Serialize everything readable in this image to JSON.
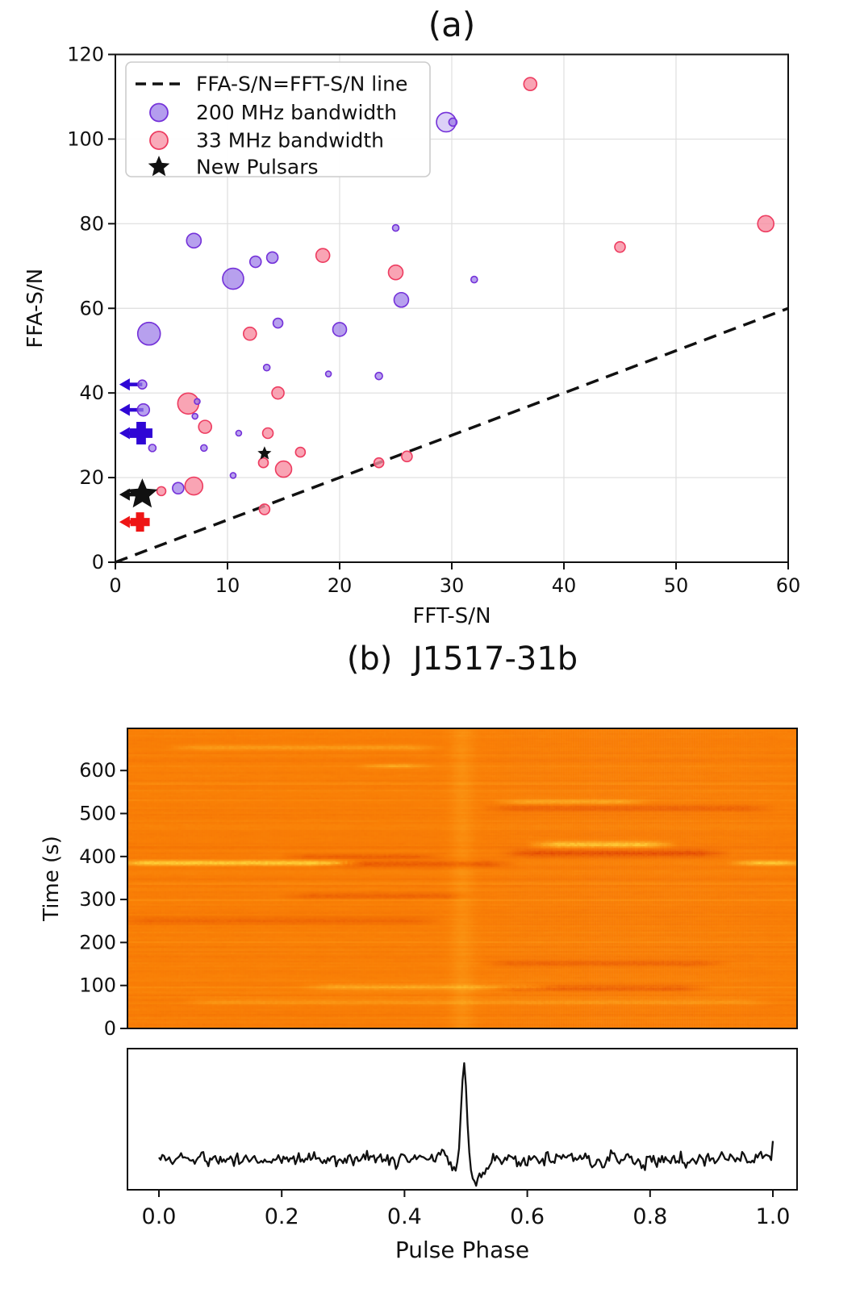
{
  "figure": {
    "panel_a_title": "(a)",
    "panel_b_title": "(b)  J1517-31b"
  },
  "colors": {
    "purple_fill": "#9b7ce8",
    "purple_edge": "#7431d9",
    "red_fill": "#f78da1",
    "red_edge": "#ed3c60",
    "blue_solid": "#2f06d5",
    "red_solid": "#ee1515",
    "black": "#111111",
    "grid": "#dedede",
    "heat_base": "#f97f06",
    "heat_bright": "#ffd43b",
    "heat_dark": "#dd3d00"
  },
  "chart_data": [
    {
      "id": "ffa-vs-fft-scatter",
      "type": "scatter",
      "title": "(a)",
      "xlabel": "FFT-S/N",
      "ylabel": "FFA-S/N",
      "xlim": [
        0,
        60
      ],
      "ylim": [
        0,
        120
      ],
      "xticks": [
        0,
        10,
        20,
        30,
        40,
        50,
        60
      ],
      "yticks": [
        0,
        20,
        40,
        60,
        80,
        100,
        120
      ],
      "grid": true,
      "identity_line": {
        "from": [
          0,
          0
        ],
        "to": [
          60,
          60
        ],
        "style": "dashed",
        "color": "#111111"
      },
      "legend": {
        "position": "upper-left",
        "entries": [
          {
            "label": "FFA-S/N=FFT-S/N line",
            "marker": "dashed-line",
            "color": "#111111"
          },
          {
            "label": "200 MHz bandwidth",
            "marker": "circle",
            "fill": "#9b7ce8",
            "edge": "#7431d9"
          },
          {
            "label": "33 MHz bandwidth",
            "marker": "circle",
            "fill": "#f78da1",
            "edge": "#ed3c60"
          },
          {
            "label": "New Pulsars",
            "marker": "star",
            "color": "#111111"
          }
        ]
      },
      "series": [
        {
          "name": "200 MHz bandwidth",
          "marker": "circle",
          "fill": "#9b7ce8",
          "edge": "#7431d9",
          "opacity": 0.72,
          "z": 3,
          "arrow_color": "#2f06d5",
          "points": [
            [
              3,
              54,
              14
            ],
            [
              7,
              76,
              9
            ],
            [
              10.5,
              67,
              13
            ],
            [
              12.5,
              71,
              7
            ],
            [
              14,
              72,
              7
            ],
            [
              25,
              79,
              4
            ],
            [
              25.5,
              62,
              9
            ],
            [
              32,
              66.8,
              4
            ],
            [
              29.5,
              104,
              12,
              {
                "alpha": 0.35
              }
            ],
            [
              30.1,
              104,
              5
            ],
            [
              14.5,
              56.5,
              6
            ],
            [
              20,
              55,
              8.5
            ],
            [
              13.5,
              46,
              4
            ],
            [
              19,
              44.5,
              3.5
            ],
            [
              23.5,
              44,
              4.5
            ],
            [
              2.4,
              42,
              5.5,
              {
                "limit": true
              }
            ],
            [
              2.5,
              36,
              7.5,
              {
                "limit": true
              }
            ],
            [
              3.3,
              27,
              4.5
            ],
            [
              7.9,
              27,
              4
            ],
            [
              7.3,
              38,
              3.5
            ],
            [
              7.1,
              34.5,
              3.5
            ],
            [
              11,
              30.5,
              3.5
            ],
            [
              10.5,
              20.5,
              3.5
            ],
            [
              5.6,
              17.5,
              7,
              {
                "z": 1
              }
            ]
          ]
        },
        {
          "name": "33 MHz bandwidth",
          "marker": "circle",
          "fill": "#f78da1",
          "edge": "#ed3c60",
          "opacity": 0.8,
          "z": 2,
          "arrow_color": "#ee1515",
          "points": [
            [
              37,
              113,
              8
            ],
            [
              58,
              80,
              10
            ],
            [
              45,
              74.5,
              6.5
            ],
            [
              18.5,
              72.5,
              8.5
            ],
            [
              25,
              68.5,
              9
            ],
            [
              12,
              54,
              8
            ],
            [
              14.5,
              40,
              7.5
            ],
            [
              6.5,
              37.5,
              13
            ],
            [
              8,
              32,
              8
            ],
            [
              13.6,
              30.5,
              6.5
            ],
            [
              16.5,
              26,
              6
            ],
            [
              13.2,
              23.5,
              6
            ],
            [
              15,
              22,
              10
            ],
            [
              23.5,
              23.5,
              6
            ],
            [
              26,
              25,
              6.5
            ],
            [
              13.3,
              12.5,
              6.5
            ],
            [
              4.1,
              16.8,
              5.5
            ],
            [
              7,
              18,
              11
            ]
          ]
        },
        {
          "name": "New Pulsars",
          "marker": "star",
          "fill": "#111111",
          "edge": "#111111",
          "opacity": 1,
          "z": 5,
          "arrow_color": "#111111",
          "points": [
            [
              2.4,
              16,
              20,
              {
                "limit": true
              }
            ],
            [
              13.3,
              25.7,
              9
            ]
          ]
        },
        {
          "name": "200 MHz candidate plus",
          "marker": "plus",
          "fill": "#2f06d5",
          "edge": "#2f06d5",
          "opacity": 1,
          "z": 5,
          "arrow_color": "#2f06d5",
          "points": [
            [
              2.3,
              30.5,
              14,
              {
                "limit": true
              }
            ]
          ]
        },
        {
          "name": "33 MHz candidate plus",
          "marker": "plus",
          "fill": "#ee1515",
          "edge": "#ee1515",
          "opacity": 1,
          "z": 5,
          "arrow_color": "#ee1515",
          "points": [
            [
              2.2,
              9.5,
              12,
              {
                "limit": true
              }
            ]
          ]
        }
      ]
    },
    {
      "id": "j1517-waterfall",
      "type": "heatmap",
      "title": "(b)  J1517-31b",
      "ylabel": "Time (s)",
      "time_range": [
        0,
        698
      ],
      "yticks": [
        0,
        100,
        200,
        300,
        400,
        500,
        600
      ],
      "base_color": "#f97f06",
      "bright_color": "#ffd43b",
      "dark_color": "#dd3d00",
      "noise": {
        "row": 0.1,
        "cell": 0.09,
        "smooth": 7
      },
      "vertical_band": {
        "phase": 0.5,
        "sigma": 0.012,
        "amp": 0.18
      },
      "features": [
        {
          "t": 385,
          "st": 4,
          "p0": 0.0,
          "p1": 0.33,
          "amp": 0.95
        },
        {
          "t": 385,
          "st": 4,
          "p0": 0.92,
          "p1": 1.0,
          "amp": 0.85
        },
        {
          "t": 383,
          "st": 5,
          "p0": 0.3,
          "p1": 0.56,
          "amp": -0.45
        },
        {
          "t": 428,
          "st": 5,
          "p0": 0.62,
          "p1": 0.8,
          "amp": 0.85
        },
        {
          "t": 408,
          "st": 6,
          "p0": 0.58,
          "p1": 0.88,
          "amp": -0.55
        },
        {
          "t": 400,
          "st": 4,
          "p0": 0.25,
          "p1": 0.45,
          "amp": -0.35
        },
        {
          "t": 513,
          "st": 5,
          "p0": 0.55,
          "p1": 0.95,
          "amp": -0.35
        },
        {
          "t": 528,
          "st": 4,
          "p0": 0.57,
          "p1": 0.76,
          "amp": 0.45
        },
        {
          "t": 95,
          "st": 5,
          "p0": 0.28,
          "p1": 0.62,
          "amp": 0.4
        },
        {
          "t": 92,
          "st": 5,
          "p0": 0.55,
          "p1": 0.85,
          "amp": -0.4
        },
        {
          "t": 150,
          "st": 5,
          "p0": 0.55,
          "p1": 0.88,
          "amp": -0.35
        },
        {
          "t": 250,
          "st": 6,
          "p0": 0.0,
          "p1": 0.45,
          "amp": -0.25
        },
        {
          "t": 655,
          "st": 4,
          "p0": 0.08,
          "p1": 0.45,
          "amp": 0.35
        },
        {
          "t": 612,
          "st": 3,
          "p0": 0.36,
          "p1": 0.44,
          "amp": 0.45
        },
        {
          "t": 308,
          "st": 5,
          "p0": 0.25,
          "p1": 0.5,
          "amp": -0.3
        },
        {
          "t": 60,
          "st": 5,
          "p0": 0.1,
          "p1": 0.95,
          "amp": 0.25
        }
      ]
    },
    {
      "id": "j1517-profile",
      "type": "line",
      "xlabel": "Pulse Phase",
      "xtick_labels": [
        "0.0",
        "0.2",
        "0.4",
        "0.6",
        "0.8",
        "1.0"
      ],
      "xtick_values": [
        0,
        0.2,
        0.4,
        0.6,
        0.8,
        1.0
      ],
      "color": "#111111",
      "n_points": 360,
      "noise_amp": 0.12,
      "baseline_frac": 0.78,
      "spike": {
        "phase": 0.497,
        "amp": 1.0,
        "sigma": 0.0045
      },
      "dips": [
        {
          "phase": 0.517,
          "amp": -0.2,
          "sigma": 0.012
        },
        {
          "phase": 0.483,
          "amp": -0.08,
          "sigma": 0.006
        }
      ],
      "end_tick_up": 0.18
    }
  ]
}
